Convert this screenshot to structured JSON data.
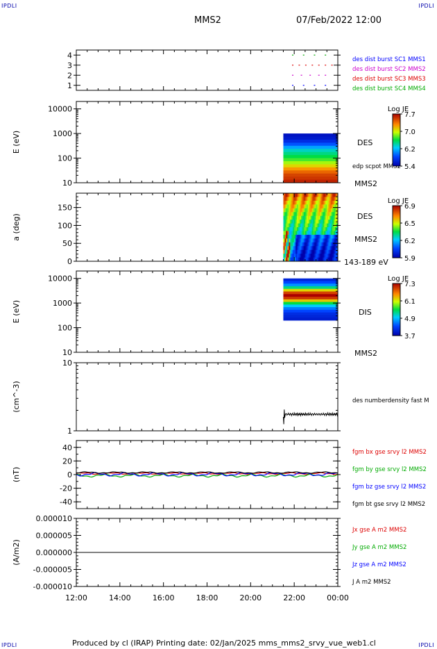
{
  "corners": {
    "top_left": "IPDLI",
    "top_right": "IPDLI",
    "bottom_left": "IPDLI",
    "bottom_right": "IPDLI"
  },
  "header": {
    "mission": "MMS2",
    "datetime": "07/Feb/2022 12:00"
  },
  "footer": {
    "text": "Produced by cl (IRAP)   Printing date: 02/Jan/2025   mms_mms2_srvy_vue_web1.cl"
  },
  "colors": {
    "sc1": "#0000ff",
    "sc2": "#cc00cc",
    "sc3": "#dd0000",
    "sc4": "#00aa00",
    "bt": "#000000"
  },
  "chart_data": [
    {
      "type": "scatter",
      "name": "availability",
      "ytick_labels": [
        "4",
        "3",
        "2",
        "1"
      ],
      "ylim": [
        0.5,
        4.5
      ],
      "legend": [
        {
          "label": "des dist burst SC1 MMS1",
          "color": "#0000ff"
        },
        {
          "label": "des dist burst SC2 MMS2",
          "color": "#cc00cc"
        },
        {
          "label": "des dist burst SC3 MMS3",
          "color": "#dd0000"
        },
        {
          "label": "des dist burst SC4 MMS4",
          "color": "#00aa00"
        }
      ],
      "series": [
        {
          "sc": 4,
          "color": "#00aa00",
          "x_hours": [
            21.9,
            22.4,
            22.9,
            23.4
          ]
        },
        {
          "sc": 3,
          "color": "#dd0000",
          "x_hours": [
            21.9,
            22.2,
            22.5,
            22.8,
            23.1,
            23.4,
            23.7
          ]
        },
        {
          "sc": 2,
          "color": "#cc00cc",
          "x_hours": [
            21.9,
            22.3,
            22.7,
            23.1,
            23.4
          ]
        },
        {
          "sc": 1,
          "color": "#0000ff",
          "x_hours": [
            21.9,
            22.4,
            22.9,
            23.4
          ]
        }
      ]
    },
    {
      "type": "heatmap",
      "name": "des-energy-spectrogram",
      "ylabel": "E (eV)",
      "yscale": "log",
      "ylim": [
        10,
        20000
      ],
      "ytick_labels": [
        "10000",
        "1000",
        "100",
        "10"
      ],
      "data_range_hours": [
        21.5,
        24.0
      ],
      "data_range_y": [
        10,
        1000
      ],
      "label": "DES",
      "overlay_label": "edp scpot MMS2",
      "bottom_label": "MMS2",
      "colorbar": {
        "title": "Log JE",
        "ticks": [
          "7.7",
          "7.0",
          "6.2",
          "5.4"
        ]
      },
      "rows": [
        0.95,
        0.93,
        0.88,
        0.8,
        0.7,
        0.6,
        0.55,
        0.5,
        0.45,
        0.38,
        0.3,
        0.22,
        0.15,
        0.1,
        0.08,
        0.05
      ]
    },
    {
      "type": "heatmap",
      "name": "des-pitch-angle",
      "ylabel": "a (deg)",
      "ylim": [
        0,
        190
      ],
      "ytick_labels": [
        "150",
        "100",
        "50",
        "0"
      ],
      "data_range_hours": [
        21.5,
        24.0
      ],
      "label": "DES",
      "sublabel": "MMS2",
      "bottom_label": "143-189 eV",
      "colorbar": {
        "title": "Log JE",
        "ticks": [
          "6.9",
          "6.5",
          "6.2",
          "5.9"
        ]
      }
    },
    {
      "type": "heatmap",
      "name": "dis-energy-spectrogram",
      "ylabel": "E (eV)",
      "yscale": "log",
      "ylim": [
        10,
        20000
      ],
      "ytick_labels": [
        "10000",
        "1000",
        "100",
        "10"
      ],
      "data_range_hours": [
        21.5,
        24.0
      ],
      "data_range_y": [
        200,
        10000
      ],
      "label": "DIS",
      "bottom_label": "MMS2",
      "colorbar": {
        "title": "Log JE",
        "ticks": [
          "7.3",
          "6.1",
          "4.9",
          "3.7"
        ]
      },
      "rows": [
        0.1,
        0.18,
        0.28,
        0.45,
        0.7,
        0.9,
        1.0,
        0.92,
        0.72,
        0.5,
        0.35,
        0.25,
        0.18,
        0.12,
        0.1,
        0.08
      ]
    },
    {
      "type": "line",
      "name": "density",
      "ylabel": "(cm^-3)",
      "yscale": "log",
      "ylim": [
        1,
        10
      ],
      "ytick_labels": [
        "10",
        "1"
      ],
      "legend": [
        {
          "label": "des numberdensity fast M",
          "color": "#000000"
        }
      ],
      "series": [
        {
          "color": "#000000",
          "start_hours": 21.5,
          "end_hours": 24.0,
          "start_value": 1.6,
          "spike_min": 1.25,
          "spike_max": 2.05,
          "value": 1.75
        }
      ]
    },
    {
      "type": "line",
      "name": "magnetic-field",
      "ylabel": "(nT)",
      "ylim": [
        -50,
        50
      ],
      "ytick_labels": [
        "40",
        "20",
        "0",
        "-20",
        "-40"
      ],
      "legend": [
        {
          "label": "fgm bx gse srvy l2 MMS2",
          "color": "#dd0000"
        },
        {
          "label": "fgm by gse srvy l2 MMS2",
          "color": "#00aa00"
        },
        {
          "label": "fgm bz gse srvy l2 MMS2",
          "color": "#0000ff"
        },
        {
          "label": "fgm bt gse srvy l2 MMS2",
          "color": "#000000"
        }
      ],
      "series": [
        {
          "label": "bx",
          "color": "#dd0000",
          "mean": 1.5,
          "amp": 1.0
        },
        {
          "label": "by",
          "color": "#00aa00",
          "mean": -1.5,
          "amp": 1.5
        },
        {
          "label": "bz",
          "color": "#0000ff",
          "mean": 0.5,
          "amp": 1.8
        },
        {
          "label": "bt",
          "color": "#000000",
          "mean": 3.0,
          "amp": 0.8
        }
      ]
    },
    {
      "type": "line",
      "name": "current-density",
      "ylabel": "(A/m2)",
      "ylim": [
        -1e-05,
        1e-05
      ],
      "ytick_labels": [
        "0.000010",
        "0.000005",
        "0.000000",
        "-0.000005",
        "-0.000010"
      ],
      "legend": [
        {
          "label": "Jx gse A m2 MMS2",
          "color": "#dd0000"
        },
        {
          "label": "Jy gse A m2 MMS2",
          "color": "#00aa00"
        },
        {
          "label": "Jz gse A m2 MMS2",
          "color": "#0000ff"
        },
        {
          "label": "J A m2 MMS2",
          "color": "#000000"
        }
      ],
      "series": [
        {
          "color": "#000000",
          "value": 0
        }
      ]
    }
  ],
  "xaxis": {
    "range_hours": [
      12,
      24
    ],
    "tick_labels": [
      "12:00",
      "14:00",
      "16:00",
      "18:00",
      "20:00",
      "22:00",
      "00:00"
    ]
  }
}
